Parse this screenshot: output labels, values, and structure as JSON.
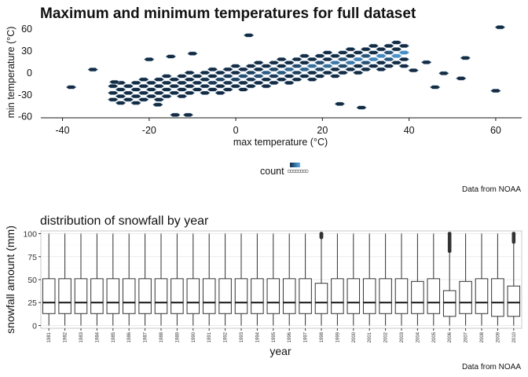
{
  "colors": {
    "hex_dark": "#132B43",
    "hex_light": "#56B1F7",
    "hex_border": "#9fb7cc",
    "axis": "#1a1a1a",
    "grid": "#ebebeb",
    "box_fill": "#ffffff",
    "box_line": "#333333"
  },
  "chart_data": [
    {
      "type": "heatmap",
      "subtype": "hexbin",
      "title": "Maximum and minimum temperatures for full dataset",
      "xlabel": "max temperature (°C)",
      "ylabel": "min temperature (°C)",
      "xlim": [
        -45,
        66
      ],
      "ylim": [
        -62,
        66
      ],
      "x_ticks": [
        -40,
        -20,
        0,
        20,
        40,
        60
      ],
      "y_ticks": [
        -60,
        -30,
        0,
        30,
        60
      ],
      "grid": false,
      "legend": {
        "title": "count",
        "placement": "bottom"
      },
      "caption": "Data from NOAA",
      "density_ridge": {
        "x": [
          -30,
          40
        ],
        "y": [
          -33,
          26
        ],
        "slope": 0.84,
        "intercept": -7
      },
      "extra_bins": [
        [
          -38,
          -20
        ],
        [
          3,
          51
        ],
        [
          61,
          62
        ],
        [
          53,
          20
        ],
        [
          41,
          3
        ],
        [
          48,
          -1
        ],
        [
          60,
          -25
        ],
        [
          24,
          -43
        ],
        [
          29,
          -48
        ],
        [
          46,
          -20
        ],
        [
          -11,
          -58
        ],
        [
          -14,
          -58
        ],
        [
          52,
          -8
        ],
        [
          -33,
          4
        ],
        [
          -20,
          18
        ],
        [
          -15,
          22
        ],
        [
          -10,
          26
        ],
        [
          44,
          14
        ],
        [
          -28,
          -13
        ],
        [
          -18,
          -44
        ]
      ]
    },
    {
      "type": "box",
      "title": "distribution of snowfall by year",
      "xlabel": "year",
      "ylabel": "snowfall amount (mm)",
      "ylim": [
        -3,
        103
      ],
      "y_ticks": [
        0,
        25,
        50,
        75,
        100
      ],
      "grid": true,
      "caption": "Data from NOAA",
      "categories": [
        "1981",
        "1982",
        "1983",
        "1984",
        "1985",
        "1986",
        "1987",
        "1988",
        "1989",
        "1990",
        "1991",
        "1992",
        "1993",
        "1994",
        "1995",
        "1996",
        "1997",
        "1998",
        "1999",
        "2000",
        "2001",
        "2002",
        "2003",
        "2004",
        "2005",
        "2006",
        "2007",
        "2008",
        "2009",
        "2010"
      ],
      "boxes": [
        {
          "q1": 13,
          "median": 25,
          "q3": 51,
          "min": 0,
          "max": 100
        },
        {
          "q1": 13,
          "median": 25,
          "q3": 51,
          "min": 0,
          "max": 100
        },
        {
          "q1": 13,
          "median": 25,
          "q3": 51,
          "min": 0,
          "max": 100
        },
        {
          "q1": 13,
          "median": 25,
          "q3": 51,
          "min": 0,
          "max": 100
        },
        {
          "q1": 13,
          "median": 25,
          "q3": 51,
          "min": 0,
          "max": 100
        },
        {
          "q1": 13,
          "median": 25,
          "q3": 51,
          "min": 0,
          "max": 100
        },
        {
          "q1": 13,
          "median": 25,
          "q3": 51,
          "min": 0,
          "max": 100
        },
        {
          "q1": 13,
          "median": 25,
          "q3": 51,
          "min": 0,
          "max": 100
        },
        {
          "q1": 13,
          "median": 25,
          "q3": 51,
          "min": 0,
          "max": 100
        },
        {
          "q1": 13,
          "median": 25,
          "q3": 51,
          "min": 0,
          "max": 100
        },
        {
          "q1": 13,
          "median": 25,
          "q3": 51,
          "min": 0,
          "max": 100
        },
        {
          "q1": 13,
          "median": 25,
          "q3": 51,
          "min": 0,
          "max": 100
        },
        {
          "q1": 13,
          "median": 25,
          "q3": 51,
          "min": 0,
          "max": 100
        },
        {
          "q1": 13,
          "median": 25,
          "q3": 51,
          "min": 0,
          "max": 100
        },
        {
          "q1": 13,
          "median": 25,
          "q3": 51,
          "min": 0,
          "max": 100
        },
        {
          "q1": 13,
          "median": 25,
          "q3": 51,
          "min": 0,
          "max": 100
        },
        {
          "q1": 13,
          "median": 25,
          "q3": 51,
          "min": 0,
          "max": 100
        },
        {
          "q1": 13,
          "median": 25,
          "q3": 46,
          "min": 0,
          "max": 94,
          "outliers": [
            96,
            97,
            98,
            99,
            100
          ]
        },
        {
          "q1": 13,
          "median": 25,
          "q3": 51,
          "min": 0,
          "max": 100
        },
        {
          "q1": 13,
          "median": 25,
          "q3": 51,
          "min": 0,
          "max": 100
        },
        {
          "q1": 13,
          "median": 25,
          "q3": 51,
          "min": 0,
          "max": 100
        },
        {
          "q1": 13,
          "median": 25,
          "q3": 51,
          "min": 0,
          "max": 100
        },
        {
          "q1": 13,
          "median": 25,
          "q3": 51,
          "min": 0,
          "max": 100
        },
        {
          "q1": 13,
          "median": 25,
          "q3": 48,
          "min": 0,
          "max": 100
        },
        {
          "q1": 13,
          "median": 25,
          "q3": 51,
          "min": 0,
          "max": 100
        },
        {
          "q1": 10,
          "median": 25,
          "q3": 38,
          "min": 0,
          "max": 79,
          "outliers": [
            81,
            83,
            85,
            87,
            89,
            91,
            93,
            95,
            97,
            99,
            100
          ]
        },
        {
          "q1": 13,
          "median": 25,
          "q3": 48,
          "min": 0,
          "max": 100
        },
        {
          "q1": 13,
          "median": 25,
          "q3": 51,
          "min": 0,
          "max": 100
        },
        {
          "q1": 10,
          "median": 25,
          "q3": 51,
          "min": 0,
          "max": 100
        },
        {
          "q1": 10,
          "median": 25,
          "q3": 43,
          "min": 0,
          "max": 89,
          "outliers": [
            91,
            93,
            95,
            97,
            99,
            100
          ]
        }
      ]
    }
  ]
}
